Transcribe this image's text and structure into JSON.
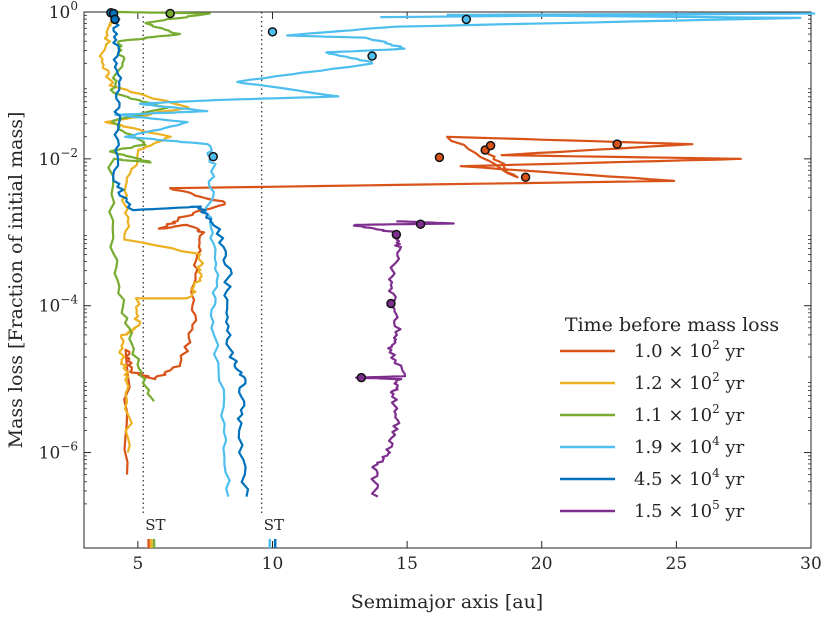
{
  "chart_data": {
    "type": "line",
    "xlabel": "Semimajor axis [au]",
    "ylabel": "Mass loss [Fraction of initial mass]",
    "xlim": [
      3,
      30
    ],
    "ylim_log10": [
      -7.3,
      0
    ],
    "xticks": [
      5,
      10,
      15,
      20,
      25,
      30
    ],
    "xtick_labels": [
      "5",
      "10",
      "15",
      "20",
      "25",
      "30"
    ],
    "yticks_log10": [
      0,
      -2,
      -4,
      -6
    ],
    "ytick_base": "10",
    "ytick_exponents": [
      "0",
      "−2",
      "−4",
      "−6"
    ],
    "stability_lines": [
      {
        "x": 5.2,
        "label": "ST"
      },
      {
        "x": 9.6,
        "label": "ST"
      }
    ],
    "legend": {
      "title": "Time before mass loss",
      "position": "lower-right"
    },
    "series": [
      {
        "name": "1.0 × 10^2 yr",
        "mantissa": "1.0 × 10",
        "exponent": "2",
        "unit": "yr",
        "color": "#D95319",
        "path": [
          [
            4.6,
            -6.3
          ],
          [
            4.6,
            -4.6
          ],
          [
            4.8,
            -4.9
          ],
          [
            5.6,
            -5.0
          ],
          [
            6.6,
            -4.8
          ],
          [
            7.1,
            -4.2
          ],
          [
            7.1,
            -3.5
          ],
          [
            7.4,
            -3.0
          ],
          [
            6.8,
            -2.9
          ],
          [
            5.9,
            -2.95
          ],
          [
            6.6,
            -2.8
          ],
          [
            8.3,
            -2.6
          ],
          [
            6.2,
            -2.4
          ],
          [
            25.0,
            -2.3
          ],
          [
            17.0,
            -2.1
          ],
          [
            27.5,
            -2.0
          ],
          [
            18.5,
            -1.95
          ],
          [
            25.5,
            -1.8
          ],
          [
            16.5,
            -1.7
          ],
          [
            19.0,
            -2.25
          ],
          [
            18.0,
            -1.9
          ]
        ],
        "markers": [
          [
            16.2,
            -1.98
          ],
          [
            17.9,
            -1.88
          ],
          [
            18.1,
            -1.82
          ],
          [
            22.8,
            -1.8
          ],
          [
            19.4,
            -2.25
          ]
        ]
      },
      {
        "name": "1.2 × 10^2 yr",
        "mantissa": "1.2 × 10",
        "exponent": "2",
        "unit": "yr",
        "color": "#EDB120",
        "path": [
          [
            4.7,
            -6.0
          ],
          [
            4.6,
            -5.0
          ],
          [
            4.4,
            -4.7
          ],
          [
            4.5,
            -4.4
          ],
          [
            5.0,
            -4.3
          ],
          [
            5.0,
            -3.9
          ],
          [
            6.9,
            -3.9
          ],
          [
            7.3,
            -3.6
          ],
          [
            7.3,
            -3.3
          ],
          [
            4.6,
            -3.1
          ],
          [
            4.5,
            -2.5
          ],
          [
            5.0,
            -1.9
          ],
          [
            6.2,
            -1.7
          ],
          [
            3.9,
            -1.5
          ],
          [
            6.8,
            -1.3
          ],
          [
            4.0,
            -1.0
          ],
          [
            3.7,
            -0.6
          ],
          [
            4.0,
            -0.2
          ],
          [
            4.2,
            -0.05
          ]
        ],
        "markers": []
      },
      {
        "name": "1.1 × 10^2 yr",
        "mantissa": "1.1 × 10",
        "exponent": "2",
        "unit": "yr",
        "color": "#77AC30",
        "path": [
          [
            5.5,
            -5.3
          ],
          [
            5.0,
            -4.8
          ],
          [
            4.5,
            -4.1
          ],
          [
            4.1,
            -3.2
          ],
          [
            4.0,
            -2.0
          ],
          [
            5.5,
            -2.05
          ],
          [
            4.0,
            -1.9
          ],
          [
            5.3,
            -1.8
          ],
          [
            4.0,
            -1.5
          ],
          [
            6.1,
            -1.3
          ],
          [
            4.0,
            -1.1
          ],
          [
            4.4,
            -0.7
          ],
          [
            4.3,
            -0.4
          ],
          [
            6.5,
            -0.3
          ],
          [
            5.2,
            -0.15
          ],
          [
            7.7,
            -0.02
          ],
          [
            4.2,
            0.0
          ]
        ],
        "markers": [
          [
            6.2,
            -0.02
          ]
        ]
      },
      {
        "name": "1.9 × 10^4 yr",
        "mantissa": "1.9 × 10",
        "exponent": "4",
        "unit": "yr",
        "color": "#4DBEEE",
        "path": [
          [
            8.4,
            -6.6
          ],
          [
            8.2,
            -5.5
          ],
          [
            7.8,
            -4.3
          ],
          [
            7.9,
            -3.5
          ],
          [
            7.6,
            -2.8
          ],
          [
            7.8,
            -2.1
          ],
          [
            7.6,
            -1.8
          ],
          [
            4.6,
            -1.7
          ],
          [
            6.9,
            -1.5
          ],
          [
            4.2,
            -1.4
          ],
          [
            7.6,
            -1.35
          ],
          [
            5.0,
            -1.25
          ],
          [
            7.8,
            -1.2
          ],
          [
            12.5,
            -1.15
          ],
          [
            8.6,
            -0.95
          ],
          [
            13.8,
            -0.7
          ],
          [
            12.0,
            -0.55
          ],
          [
            15.0,
            -0.5
          ],
          [
            13.5,
            -0.35
          ],
          [
            10.5,
            -0.32
          ],
          [
            14.6,
            -0.2
          ],
          [
            29.5,
            -0.08
          ],
          [
            16.5,
            -0.04
          ],
          [
            30.0,
            -0.02
          ],
          [
            14.0,
            -0.07
          ]
        ],
        "markers": [
          [
            7.8,
            -1.97
          ],
          [
            13.7,
            -0.6
          ],
          [
            10.0,
            -0.27
          ],
          [
            17.2,
            -0.1
          ]
        ]
      },
      {
        "name": "4.5 × 10^4 yr",
        "mantissa": "4.5 × 10",
        "exponent": "4",
        "unit": "yr",
        "color": "#0072BD",
        "path": [
          [
            9.0,
            -6.6
          ],
          [
            8.8,
            -5.6
          ],
          [
            8.9,
            -5.0
          ],
          [
            8.5,
            -4.7
          ],
          [
            8.2,
            -4.1
          ],
          [
            8.4,
            -3.5
          ],
          [
            7.9,
            -2.9
          ],
          [
            7.3,
            -2.65
          ],
          [
            4.7,
            -2.7
          ],
          [
            4.2,
            -2.3
          ],
          [
            4.2,
            -1.6
          ],
          [
            4.3,
            -1.0
          ],
          [
            4.2,
            -0.5
          ],
          [
            4.2,
            -0.1
          ],
          [
            4.0,
            -0.02
          ]
        ],
        "markers": [
          [
            4.0,
            -0.01
          ],
          [
            4.1,
            -0.02
          ],
          [
            4.15,
            -0.1
          ]
        ]
      },
      {
        "name": "1.5 × 10^5 yr",
        "mantissa": "1.5 × 10",
        "exponent": "5",
        "unit": "yr",
        "color": "#7E2F8E",
        "path": [
          [
            13.8,
            -6.6
          ],
          [
            13.8,
            -6.2
          ],
          [
            14.3,
            -6.0
          ],
          [
            14.6,
            -5.6
          ],
          [
            14.5,
            -5.2
          ],
          [
            14.7,
            -5.0
          ],
          [
            13.2,
            -4.98
          ],
          [
            14.9,
            -4.96
          ],
          [
            14.3,
            -4.6
          ],
          [
            14.7,
            -4.4
          ],
          [
            14.5,
            -4.0
          ],
          [
            14.4,
            -3.6
          ],
          [
            14.7,
            -3.2
          ],
          [
            14.5,
            -3.0
          ],
          [
            13.0,
            -2.9
          ],
          [
            16.7,
            -2.88
          ],
          [
            14.6,
            -2.85
          ]
        ],
        "markers": [
          [
            13.3,
            -4.98
          ],
          [
            14.4,
            -3.97
          ],
          [
            14.6,
            -3.03
          ],
          [
            15.5,
            -2.89
          ]
        ]
      }
    ],
    "st_ticks": [
      {
        "x": 5.4,
        "color": "#D95319"
      },
      {
        "x": 5.5,
        "color": "#EDB120"
      },
      {
        "x": 5.6,
        "color": "#77AC30"
      },
      {
        "x": 9.9,
        "color": "#4DBEEE"
      },
      {
        "x": 10.1,
        "color": "#0072BD"
      }
    ]
  }
}
